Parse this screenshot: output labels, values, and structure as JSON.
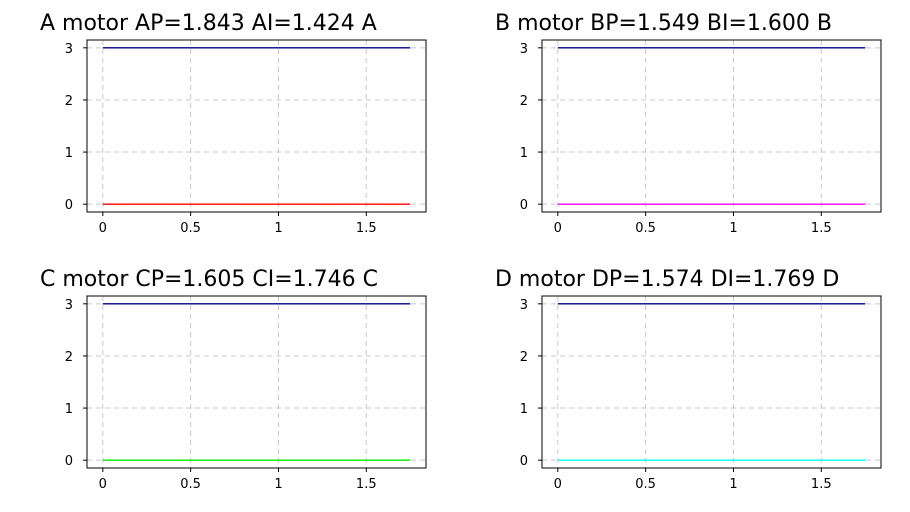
{
  "chart_data": [
    {
      "type": "line",
      "title": "A  motor AP=1.843  AI=1.424  A",
      "x": [
        0,
        1.75
      ],
      "series": [
        {
          "values": [
            3,
            3
          ],
          "color": "#00008b"
        },
        {
          "values": [
            0,
            0
          ],
          "color": "#ff0000"
        }
      ],
      "xticks": [
        0,
        0.5,
        1,
        1.5
      ],
      "xtick_labels": [
        "0",
        "0.5",
        "1",
        "1.5"
      ],
      "yticks": [
        0,
        1,
        2,
        3
      ],
      "ytick_labels": [
        "0",
        "1",
        "2",
        "3"
      ],
      "xlim": [
        -0.09,
        1.84
      ],
      "ylim": [
        -0.15,
        3.15
      ],
      "grid": true
    },
    {
      "type": "line",
      "title": "B  motor BP=1.549  BI=1.600  B",
      "x": [
        0,
        1.75
      ],
      "series": [
        {
          "values": [
            3,
            3
          ],
          "color": "#00008b"
        },
        {
          "values": [
            0,
            0
          ],
          "color": "#ff00ff"
        }
      ],
      "xticks": [
        0,
        0.5,
        1,
        1.5
      ],
      "xtick_labels": [
        "0",
        "0.5",
        "1",
        "1.5"
      ],
      "yticks": [
        0,
        1,
        2,
        3
      ],
      "ytick_labels": [
        "0",
        "1",
        "2",
        "3"
      ],
      "xlim": [
        -0.09,
        1.84
      ],
      "ylim": [
        -0.15,
        3.15
      ],
      "grid": true
    },
    {
      "type": "line",
      "title": "C  motor CP=1.605  CI=1.746  C",
      "x": [
        0,
        1.75
      ],
      "series": [
        {
          "values": [
            3,
            3
          ],
          "color": "#00008b"
        },
        {
          "values": [
            0,
            0
          ],
          "color": "#00ee00"
        }
      ],
      "xticks": [
        0,
        0.5,
        1,
        1.5
      ],
      "xtick_labels": [
        "0",
        "0.5",
        "1",
        "1.5"
      ],
      "yticks": [
        0,
        1,
        2,
        3
      ],
      "ytick_labels": [
        "0",
        "1",
        "2",
        "3"
      ],
      "xlim": [
        -0.09,
        1.84
      ],
      "ylim": [
        -0.15,
        3.15
      ],
      "grid": true
    },
    {
      "type": "line",
      "title": "D  motor DP=1.574  DI=1.769  D",
      "x": [
        0,
        1.75
      ],
      "series": [
        {
          "values": [
            3,
            3
          ],
          "color": "#00008b"
        },
        {
          "values": [
            0,
            0
          ],
          "color": "#00ffff"
        }
      ],
      "xticks": [
        0,
        0.5,
        1,
        1.5
      ],
      "xtick_labels": [
        "0",
        "0.5",
        "1",
        "1.5"
      ],
      "yticks": [
        0,
        1,
        2,
        3
      ],
      "ytick_labels": [
        "0",
        "1",
        "2",
        "3"
      ],
      "xlim": [
        -0.09,
        1.84
      ],
      "ylim": [
        -0.15,
        3.15
      ],
      "grid": true
    }
  ]
}
